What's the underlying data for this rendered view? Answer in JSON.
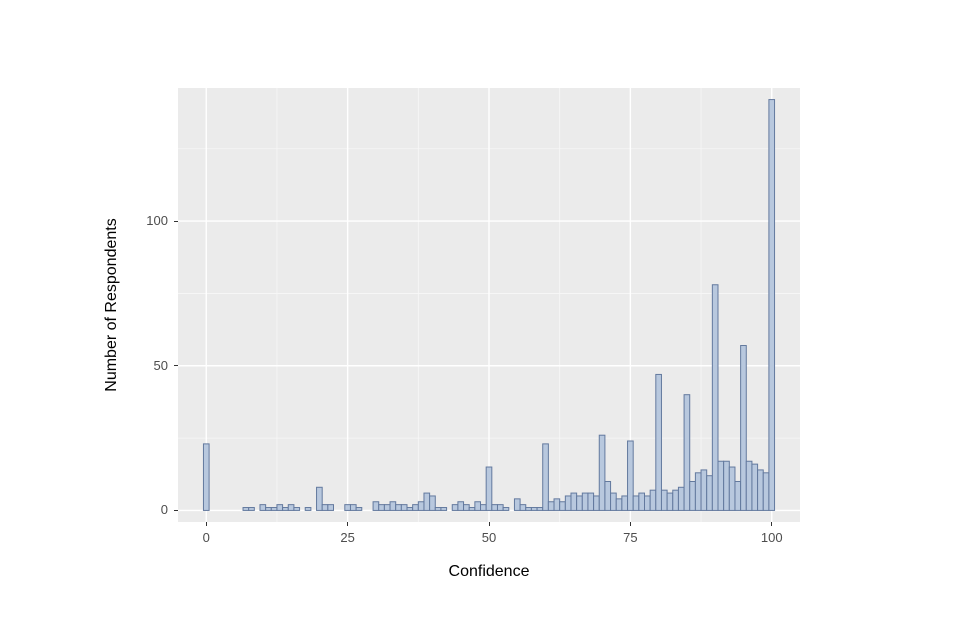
{
  "chart_data": {
    "type": "bar",
    "subtype": "histogram",
    "title": "",
    "xlabel": "Confidence",
    "ylabel": "Number of Respondents",
    "binwidth": 1,
    "bin_x": [
      0,
      7,
      8,
      10,
      11,
      12,
      13,
      14,
      15,
      16,
      18,
      20,
      21,
      22,
      25,
      26,
      27,
      30,
      31,
      32,
      33,
      34,
      35,
      36,
      37,
      38,
      39,
      40,
      41,
      42,
      44,
      45,
      46,
      47,
      48,
      49,
      50,
      51,
      52,
      53,
      55,
      56,
      57,
      58,
      59,
      60,
      61,
      62,
      63,
      64,
      65,
      66,
      67,
      68,
      69,
      70,
      71,
      72,
      73,
      74,
      75,
      76,
      77,
      78,
      79,
      80,
      81,
      82,
      83,
      84,
      85,
      86,
      87,
      88,
      89,
      90,
      91,
      92,
      93,
      94,
      95,
      96,
      97,
      98,
      99,
      100
    ],
    "bin_counts": [
      23,
      1,
      1,
      2,
      1,
      1,
      2,
      1,
      2,
      1,
      1,
      8,
      2,
      2,
      2,
      2,
      1,
      3,
      2,
      2,
      3,
      2,
      2,
      1,
      2,
      3,
      6,
      5,
      1,
      1,
      2,
      3,
      2,
      1,
      3,
      2,
      15,
      2,
      2,
      1,
      4,
      2,
      1,
      1,
      1,
      23,
      3,
      4,
      3,
      5,
      6,
      5,
      6,
      6,
      5,
      26,
      10,
      6,
      4,
      5,
      24,
      5,
      6,
      5,
      7,
      47,
      7,
      6,
      7,
      8,
      40,
      10,
      13,
      14,
      12,
      78,
      17,
      17,
      15,
      10,
      57,
      17,
      16,
      14,
      13,
      142
    ],
    "xlim": [
      -5,
      105
    ],
    "ylim": [
      -4,
      146
    ],
    "x_ticks": [
      0,
      25,
      50,
      75,
      100
    ],
    "x_tick_labels": [
      "0",
      "25",
      "50",
      "75",
      "100"
    ],
    "y_ticks": [
      0,
      50,
      100
    ],
    "y_tick_labels": [
      "0",
      "50",
      "100"
    ],
    "x_minor": [
      12.5,
      37.5,
      62.5,
      87.5
    ],
    "y_minor": [
      25,
      75,
      125
    ],
    "grid": true,
    "legend": "none",
    "colors": {
      "panel_bg": "#EBEBEB",
      "figure_bg": "#FFFFFF",
      "grid_major": "#FFFFFF",
      "grid_minor": "#F7F7F7",
      "bar_fill": "#B8C8DE",
      "bar_stroke": "#63799E",
      "tick_text": "#4D4D4D",
      "axis_title_text": "#000000",
      "tick_mark": "#333333"
    }
  }
}
